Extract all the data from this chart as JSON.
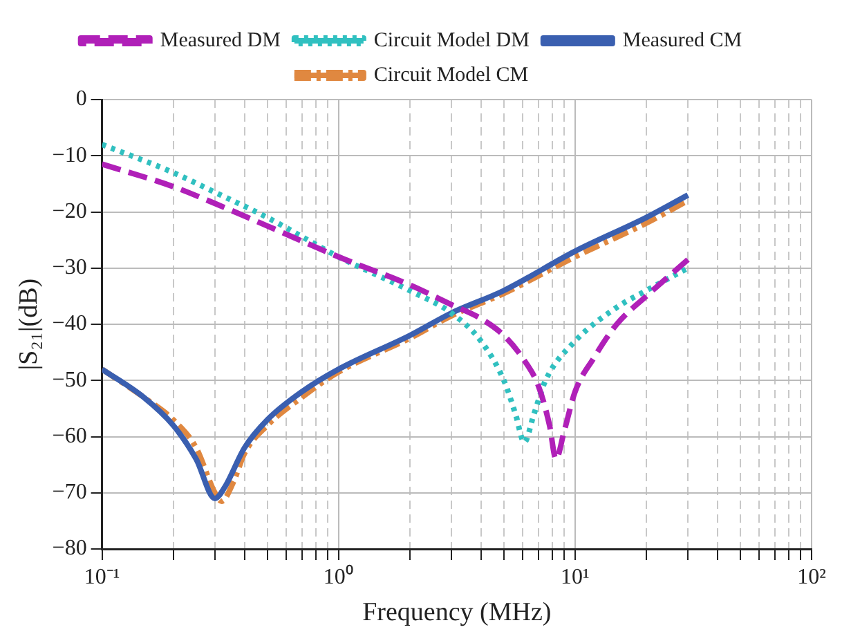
{
  "chart_data": {
    "type": "line",
    "xlabel": "Frequency (MHz)",
    "ylabel": "|S₂₁|(dB)",
    "log": "x",
    "xlim": [
      0.1,
      100
    ],
    "ylim": [
      -80,
      0
    ],
    "xticks": [
      {
        "value": 0.1,
        "label": "10⁻¹"
      },
      {
        "value": 0.2,
        "label": null
      },
      {
        "value": 0.3,
        "label": null
      },
      {
        "value": 0.4,
        "label": null
      },
      {
        "value": 0.5,
        "label": null
      },
      {
        "value": 0.6,
        "label": null
      },
      {
        "value": 0.7,
        "label": null
      },
      {
        "value": 0.8,
        "label": null
      },
      {
        "value": 0.9,
        "label": null
      },
      {
        "value": 1,
        "label": "10⁰"
      },
      {
        "value": 2,
        "label": null
      },
      {
        "value": 3,
        "label": null
      },
      {
        "value": 4,
        "label": null
      },
      {
        "value": 5,
        "label": null
      },
      {
        "value": 6,
        "label": null
      },
      {
        "value": 7,
        "label": null
      },
      {
        "value": 8,
        "label": null
      },
      {
        "value": 9,
        "label": null
      },
      {
        "value": 10,
        "label": "10¹"
      },
      {
        "value": 20,
        "label": null
      },
      {
        "value": 30,
        "label": null
      },
      {
        "value": 40,
        "label": null
      },
      {
        "value": 50,
        "label": null
      },
      {
        "value": 60,
        "label": null
      },
      {
        "value": 70,
        "label": null
      },
      {
        "value": 80,
        "label": null
      },
      {
        "value": 90,
        "label": null
      },
      {
        "value": 100,
        "label": "10²"
      }
    ],
    "yticks": [
      -80,
      -70,
      -60,
      -50,
      -40,
      -30,
      -20,
      -10,
      0
    ],
    "grid": true,
    "legend": "top",
    "marker": "none",
    "series": [
      {
        "name": "Measured DM",
        "color": "#b020b8",
        "line_style": "dashed",
        "x": [
          0.1,
          0.2,
          0.3,
          0.5,
          1,
          2,
          3,
          4,
          5,
          6,
          7,
          7.8,
          8.3,
          9,
          10,
          12,
          15,
          20,
          30
        ],
        "values": [
          -11.5,
          -15.5,
          -18.5,
          -22.5,
          -28,
          -33,
          -36.5,
          -39,
          -42,
          -46,
          -51,
          -58,
          -64,
          -59,
          -52,
          -46,
          -40,
          -35,
          -28.5
        ]
      },
      {
        "name": "Circuit Model DM",
        "color": "#30c0c0",
        "line_style": "dotted",
        "x": [
          0.1,
          0.2,
          0.3,
          0.5,
          1,
          2,
          3,
          4,
          5,
          5.6,
          6.1,
          6.7,
          7.5,
          10,
          15,
          20,
          30
        ],
        "values": [
          -8,
          -13,
          -16.5,
          -21,
          -28,
          -34,
          -38,
          -43,
          -50,
          -56,
          -61,
          -56,
          -50,
          -43,
          -37,
          -34,
          -30
        ]
      },
      {
        "name": "Measured CM",
        "color": "#3a5fb0",
        "line_style": "solid",
        "x": [
          0.1,
          0.15,
          0.2,
          0.25,
          0.3,
          0.33,
          0.4,
          0.5,
          0.7,
          1,
          2,
          3,
          5,
          10,
          20,
          30
        ],
        "values": [
          -48,
          -53,
          -58,
          -64,
          -71,
          -69,
          -62,
          -57,
          -52,
          -48,
          -42,
          -38,
          -34,
          -27,
          -21,
          -17
        ]
      },
      {
        "name": "Circuit Model CM",
        "color": "#e08840",
        "line_style": "dashdot",
        "x": [
          0.1,
          0.15,
          0.2,
          0.25,
          0.3,
          0.32,
          0.36,
          0.4,
          0.5,
          0.7,
          1,
          2,
          3,
          5,
          10,
          20,
          30
        ],
        "values": [
          -48,
          -53,
          -57,
          -62,
          -70,
          -71.5,
          -68,
          -63,
          -58,
          -53,
          -48.5,
          -42.5,
          -38.5,
          -34.5,
          -28,
          -22,
          -18
        ]
      }
    ]
  }
}
